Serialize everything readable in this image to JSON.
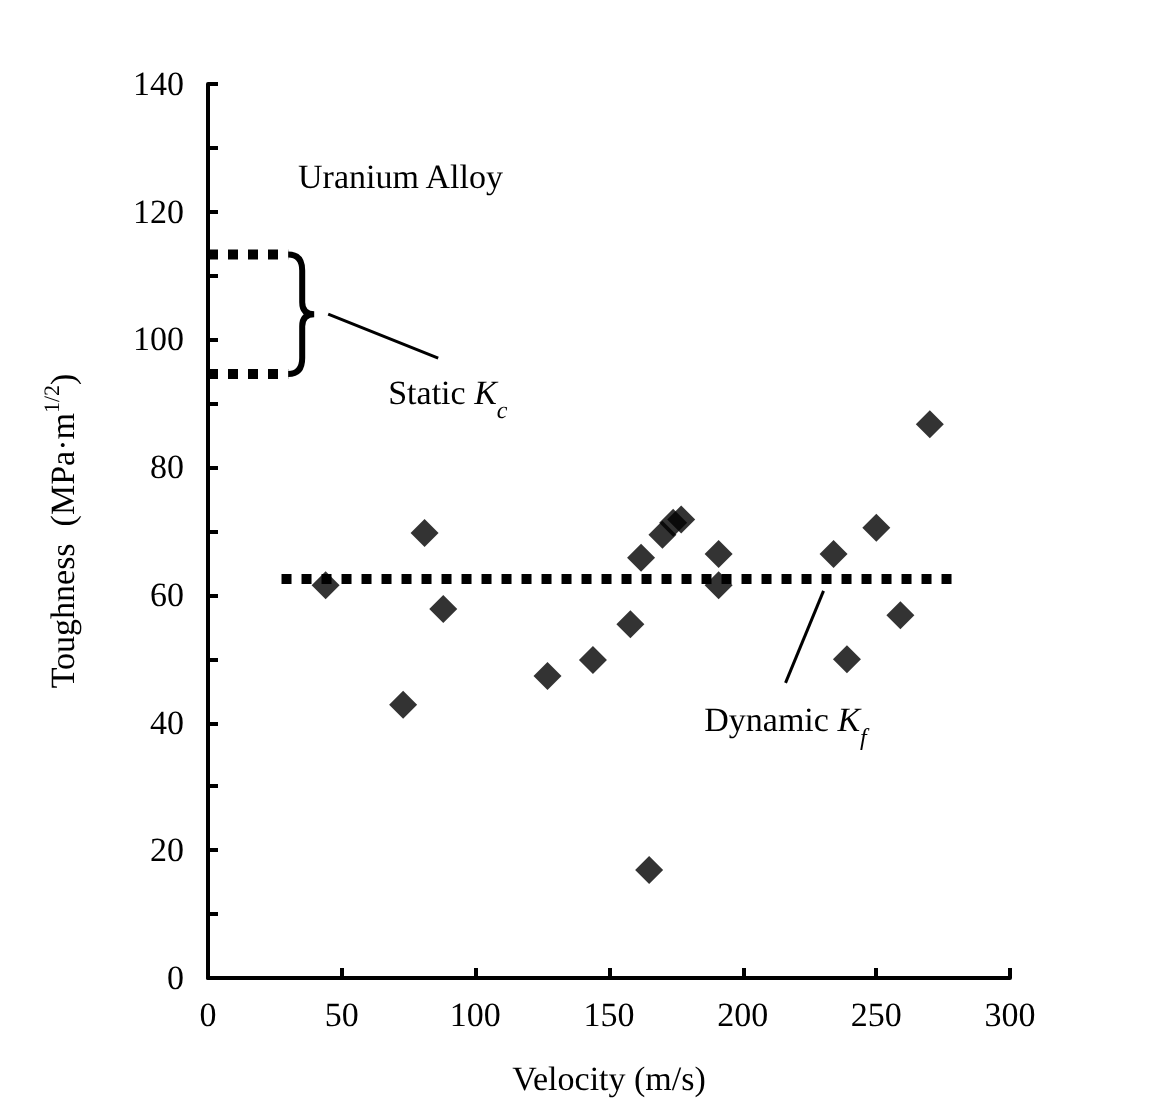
{
  "chart_data": {
    "type": "scatter",
    "xlabel": "Velocity (m/s)",
    "ylabel": "Toughness  (MPa·m$^{1/2}$)",
    "annotations": [
      "Uranium Alloy",
      "Static K$_{c}$",
      "Dynamic K$_{f}$"
    ],
    "series": [
      {
        "color": "#000000",
        "marker": "diamond",
        "x": [
          44,
          73,
          88,
          81,
          127,
          144,
          158,
          162,
          165,
          170,
          174,
          177,
          191,
          191,
          234,
          239,
          250,
          259,
          270
        ],
        "values": [
          61.5,
          42.8,
          57.8,
          69.7,
          47.3,
          49.8,
          55.4,
          65.8,
          16.9,
          69.4,
          71.3,
          71.8,
          66.4,
          61.5,
          66.4,
          49.9,
          70.5,
          56.8,
          86.7
        ]
      },
      {
        "type": "line",
        "color": "#000000",
        "marker": "none",
        "line_style": "dotted",
        "x": [
          0,
          30
        ],
        "values": [
          113.3,
          113.3
        ]
      },
      {
        "type": "line",
        "color": "#000000",
        "marker": "none",
        "line_style": "dotted",
        "x": [
          0,
          30
        ],
        "values": [
          94.6,
          94.6
        ]
      },
      {
        "type": "line",
        "color": "#000000",
        "marker": "none",
        "line_style": "dotted",
        "x": [
          27.5,
          280
        ],
        "values": [
          62.5,
          62.5
        ]
      }
    ],
    "xlim": [
      0,
      300
    ],
    "xticks": [
      0,
      50,
      100,
      150,
      200,
      250,
      300
    ],
    "ylim": [
      0,
      140
    ],
    "yticks": [
      0,
      {
        "value": 10,
        "label": null
      },
      20,
      {
        "value": 30,
        "label": null
      },
      40,
      {
        "value": 50,
        "label": null
      },
      60,
      {
        "value": 70,
        "label": null
      },
      80,
      {
        "value": 90,
        "label": null
      },
      100,
      {
        "value": 110,
        "label": null
      },
      120,
      {
        "value": 130,
        "label": null
      },
      140
    ],
    "grid": false
  }
}
